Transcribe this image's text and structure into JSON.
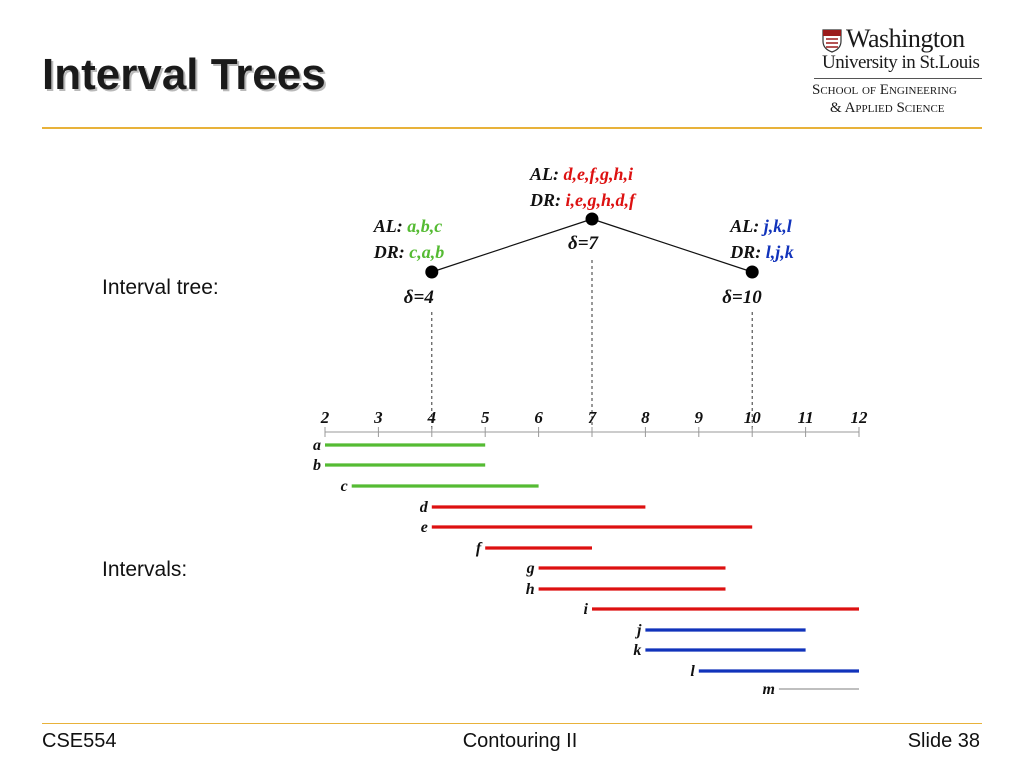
{
  "slide": {
    "title": "Interval Trees",
    "footer": {
      "left": "CSE554",
      "center": "Contouring II",
      "right": "Slide 38"
    },
    "labels": {
      "tree": "Interval tree:",
      "intervals": "Intervals:"
    }
  },
  "logo": {
    "line1": "Washington",
    "line2": "University in St.Louis",
    "line3": "School of Engineering",
    "line4": "& Applied Science"
  },
  "colors": {
    "green": "#55bb33",
    "red": "#dd1111",
    "blue": "#1133bb",
    "gray": "#999999",
    "accent_rule": "#e8b23a"
  },
  "tree": {
    "nodes": [
      {
        "id": "root",
        "delta_label": "δ=7",
        "center": 7,
        "al_prefix": "AL: ",
        "al_items": "d,e,f,g,h,i",
        "dr_prefix": "DR: ",
        "dr_items": "i,e,g,h,d,f",
        "color": "red"
      },
      {
        "id": "left",
        "delta_label": "δ=4",
        "center": 4,
        "al_prefix": "AL: ",
        "al_items": "a,b,c",
        "dr_prefix": "DR: ",
        "dr_items": "c,a,b",
        "color": "green"
      },
      {
        "id": "right",
        "delta_label": "δ=10",
        "center": 10,
        "al_prefix": "AL: ",
        "al_items": "j,k,l",
        "dr_prefix": "DR: ",
        "dr_items": "l,j,k",
        "color": "blue"
      }
    ]
  },
  "axis": {
    "ticks": [
      "2",
      "3",
      "4",
      "5",
      "6",
      "7",
      "8",
      "9",
      "10",
      "11",
      "12"
    ],
    "min": 2,
    "max": 12
  },
  "intervals": [
    {
      "label": "a",
      "start": 2,
      "end": 5,
      "color": "green"
    },
    {
      "label": "b",
      "start": 2,
      "end": 5,
      "color": "green"
    },
    {
      "label": "c",
      "start": 2.5,
      "end": 6,
      "color": "green"
    },
    {
      "label": "d",
      "start": 4,
      "end": 8,
      "color": "red"
    },
    {
      "label": "e",
      "start": 4,
      "end": 10,
      "color": "red"
    },
    {
      "label": "f",
      "start": 5,
      "end": 7,
      "color": "red"
    },
    {
      "label": "g",
      "start": 6,
      "end": 9.5,
      "color": "red"
    },
    {
      "label": "h",
      "start": 6,
      "end": 9.5,
      "color": "red"
    },
    {
      "label": "i",
      "start": 7,
      "end": 12,
      "color": "red"
    },
    {
      "label": "j",
      "start": 8,
      "end": 11,
      "color": "blue"
    },
    {
      "label": "k",
      "start": 8,
      "end": 11,
      "color": "blue"
    },
    {
      "label": "l",
      "start": 9,
      "end": 12,
      "color": "blue"
    },
    {
      "label": "m",
      "start": 10.5,
      "end": 12,
      "color": "gray"
    }
  ]
}
